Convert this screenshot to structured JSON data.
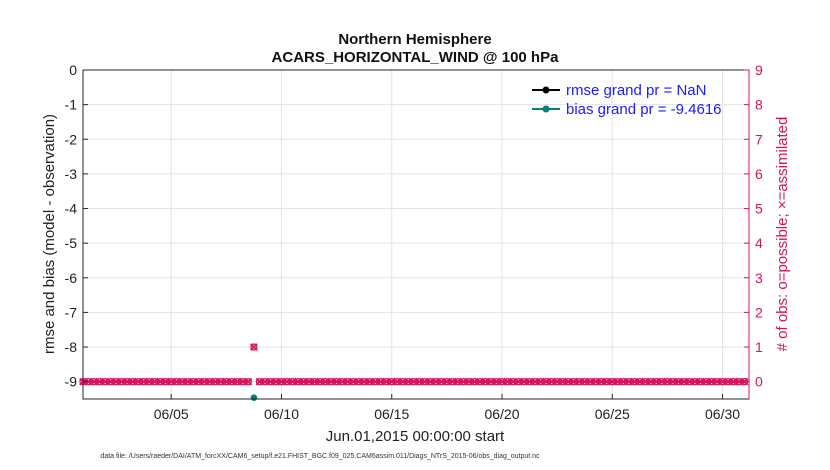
{
  "chart_data": {
    "type": "line",
    "title_lines": [
      "Northern Hemisphere",
      "ACARS_HORIZONTAL_WIND @ 100 hPa"
    ],
    "xlabel": "Jun.01,2015 00:00:00 start",
    "ylabel": "rmse and bias (model - observation)",
    "ylabel_right": "# of obs: o=possible; ×=assimilated",
    "footnote": "data file: /Users/raeder/DAI/ATM_forcXX/CAM6_setup/f.e21.FHIST_BGC.f09_025.CAM6assim.011/Diags_NTrS_2015-06/obs_diag_output.nc",
    "xlim": [
      1,
      31.2
    ],
    "xticks": [
      5,
      10,
      15,
      20,
      25,
      30
    ],
    "xtick_labels": [
      "06/05",
      "06/10",
      "06/15",
      "06/20",
      "06/25",
      "06/30"
    ],
    "ylim": [
      -9.5,
      0
    ],
    "yticks": [
      0,
      -1,
      -2,
      -3,
      -4,
      -5,
      -6,
      -7,
      -8,
      -9
    ],
    "ytick_labels": [
      "0",
      "-1",
      "-2",
      "-3",
      "-4",
      "-5",
      "-6",
      "-7",
      "-8",
      "-9"
    ],
    "ylim_right": [
      -0.5,
      9
    ],
    "yticks_right": [
      0,
      1,
      2,
      3,
      4,
      5,
      6,
      7,
      8,
      9
    ],
    "ytick_labels_right": [
      "0",
      "1",
      "2",
      "3",
      "4",
      "5",
      "6",
      "7",
      "8",
      "9"
    ],
    "grid": true,
    "legend_position": "top-right",
    "series": [
      {
        "name": "rmse grand pr = NaN",
        "color": "#000000",
        "marker": "dot",
        "x": [],
        "y": []
      },
      {
        "name": "bias grand pr = -9.4616",
        "color": "#008080",
        "marker": "dot",
        "x": [
          8.75
        ],
        "y": [
          -9.4616
        ]
      }
    ],
    "obs_counts": {
      "axis": "right",
      "color": "#d6145c",
      "x_start": 1,
      "x_step": 0.25,
      "count": 121,
      "break_after_index": 30,
      "possible": [
        0,
        0,
        0,
        0,
        0,
        0,
        0,
        0,
        0,
        0,
        0,
        0,
        0,
        0,
        0,
        0,
        0,
        0,
        0,
        0,
        0,
        0,
        0,
        0,
        0,
        0,
        0,
        0,
        0,
        0,
        0,
        1,
        0,
        0,
        0,
        0,
        0,
        0,
        0,
        0,
        0,
        0,
        0,
        0,
        0,
        0,
        0,
        0,
        0,
        0,
        0,
        0,
        0,
        0,
        0,
        0,
        0,
        0,
        0,
        0,
        0,
        0,
        0,
        0,
        0,
        0,
        0,
        0,
        0,
        0,
        0,
        0,
        0,
        0,
        0,
        0,
        0,
        0,
        0,
        0,
        0,
        0,
        0,
        0,
        0,
        0,
        0,
        0,
        0,
        0,
        0,
        0,
        0,
        0,
        0,
        0,
        0,
        0,
        0,
        0,
        0,
        0,
        0,
        0,
        0,
        0,
        0,
        0,
        0,
        0,
        0,
        0,
        0,
        0,
        0,
        0,
        0,
        0,
        0,
        0,
        0,
        0
      ],
      "assimilated": [
        0,
        0,
        0,
        0,
        0,
        0,
        0,
        0,
        0,
        0,
        0,
        0,
        0,
        0,
        0,
        0,
        0,
        0,
        0,
        0,
        0,
        0,
        0,
        0,
        0,
        0,
        0,
        0,
        0,
        0,
        0,
        1,
        0,
        0,
        0,
        0,
        0,
        0,
        0,
        0,
        0,
        0,
        0,
        0,
        0,
        0,
        0,
        0,
        0,
        0,
        0,
        0,
        0,
        0,
        0,
        0,
        0,
        0,
        0,
        0,
        0,
        0,
        0,
        0,
        0,
        0,
        0,
        0,
        0,
        0,
        0,
        0,
        0,
        0,
        0,
        0,
        0,
        0,
        0,
        0,
        0,
        0,
        0,
        0,
        0,
        0,
        0,
        0,
        0,
        0,
        0,
        0,
        0,
        0,
        0,
        0,
        0,
        0,
        0,
        0,
        0,
        0,
        0,
        0,
        0,
        0,
        0,
        0,
        0,
        0,
        0,
        0,
        0,
        0,
        0,
        0,
        0,
        0,
        0,
        0,
        0,
        0
      ]
    }
  }
}
